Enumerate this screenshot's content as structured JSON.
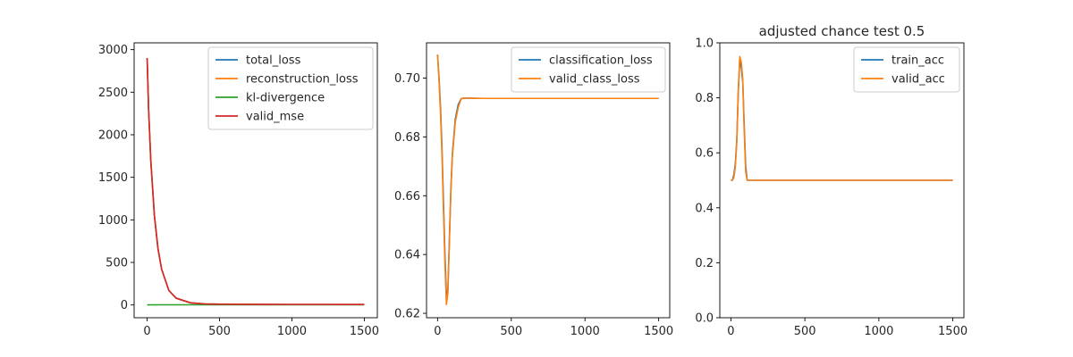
{
  "figure": {
    "background": "#ffffff"
  },
  "chart_data": [
    {
      "type": "line",
      "title": "",
      "xlabel": "",
      "ylabel": "",
      "xlim": [
        -90,
        1590
      ],
      "ylim": [
        -150,
        3080
      ],
      "xticks": [
        0,
        500,
        1000,
        1500
      ],
      "yticks": [
        0,
        500,
        1000,
        1500,
        2000,
        2500,
        3000
      ],
      "grid": false,
      "legend_position": "top-right",
      "series": [
        {
          "name": "total_loss",
          "color": "#1f77b4",
          "x": [
            0,
            10,
            25,
            50,
            75,
            100,
            150,
            200,
            300,
            400,
            500,
            750,
            1000,
            1250,
            1500
          ],
          "y": [
            2900,
            2300,
            1700,
            1050,
            660,
            420,
            170,
            80,
            25,
            12,
            9,
            7,
            6,
            6,
            5
          ]
        },
        {
          "name": "reconstruction_loss",
          "color": "#ff7f0e",
          "x": [
            0,
            10,
            25,
            50,
            75,
            100,
            150,
            200,
            300,
            400,
            500,
            750,
            1000,
            1250,
            1500
          ],
          "y": [
            2900,
            2300,
            1700,
            1050,
            660,
            420,
            170,
            80,
            25,
            12,
            9,
            7,
            6,
            6,
            5
          ]
        },
        {
          "name": "kl-divergence",
          "color": "#2ca02c",
          "x": [
            0,
            100,
            200,
            300,
            400,
            500,
            750,
            1000,
            1250,
            1500
          ],
          "y": [
            1,
            2,
            2,
            2,
            2,
            2,
            2,
            2,
            2,
            2
          ]
        },
        {
          "name": "valid_mse",
          "color": "#d62728",
          "x": [
            0,
            10,
            25,
            50,
            75,
            100,
            150,
            200,
            300,
            400,
            500,
            750,
            1000,
            1250,
            1500
          ],
          "y": [
            2900,
            2300,
            1700,
            1050,
            660,
            420,
            170,
            80,
            25,
            12,
            9,
            7,
            6,
            6,
            5
          ]
        }
      ]
    },
    {
      "type": "line",
      "title": "",
      "xlabel": "",
      "ylabel": "",
      "xlim": [
        -75,
        1575
      ],
      "ylim": [
        0.6185,
        0.712
      ],
      "xticks": [
        0,
        500,
        1000,
        1500
      ],
      "yticks": [
        0.62,
        0.64,
        0.66,
        0.68,
        0.7
      ],
      "grid": false,
      "legend_position": "top-right",
      "series": [
        {
          "name": "classification_loss",
          "color": "#1f77b4",
          "x": [
            0,
            10,
            20,
            30,
            40,
            50,
            60,
            70,
            80,
            90,
            100,
            120,
            140,
            160,
            180,
            200,
            300,
            500,
            1000,
            1500
          ],
          "y": [
            0.708,
            0.7,
            0.69,
            0.676,
            0.658,
            0.64,
            0.626,
            0.628,
            0.645,
            0.662,
            0.674,
            0.686,
            0.691,
            0.693,
            0.6932,
            0.6932,
            0.6931,
            0.6931,
            0.6931,
            0.6931
          ]
        },
        {
          "name": "valid_class_loss",
          "color": "#ff7f0e",
          "x": [
            0,
            10,
            20,
            30,
            40,
            50,
            60,
            70,
            80,
            90,
            100,
            120,
            140,
            160,
            180,
            200,
            300,
            500,
            1000,
            1500
          ],
          "y": [
            0.708,
            0.699,
            0.688,
            0.674,
            0.655,
            0.637,
            0.623,
            0.627,
            0.644,
            0.661,
            0.673,
            0.685,
            0.69,
            0.693,
            0.6932,
            0.6932,
            0.6931,
            0.6931,
            0.6931,
            0.6931
          ]
        }
      ]
    },
    {
      "type": "line",
      "title": "adjusted chance test 0.5",
      "xlabel": "",
      "ylabel": "",
      "xlim": [
        -75,
        1575
      ],
      "ylim": [
        0.0,
        1.0
      ],
      "xticks": [
        0,
        500,
        1000,
        1500
      ],
      "yticks": [
        0.0,
        0.2,
        0.4,
        0.6,
        0.8,
        1.0
      ],
      "grid": false,
      "legend_position": "top-right",
      "series": [
        {
          "name": "train_acc",
          "color": "#1f77b4",
          "x": [
            0,
            10,
            20,
            30,
            40,
            50,
            60,
            70,
            80,
            90,
            100,
            110,
            120,
            1500
          ],
          "y": [
            0.5,
            0.5,
            0.52,
            0.56,
            0.65,
            0.82,
            0.94,
            0.91,
            0.86,
            0.7,
            0.55,
            0.5,
            0.5,
            0.5
          ]
        },
        {
          "name": "valid_acc",
          "color": "#ff7f0e",
          "x": [
            0,
            10,
            20,
            30,
            40,
            50,
            60,
            70,
            80,
            90,
            100,
            110,
            120,
            1500
          ],
          "y": [
            0.5,
            0.5,
            0.51,
            0.55,
            0.64,
            0.83,
            0.95,
            0.93,
            0.87,
            0.68,
            0.53,
            0.5,
            0.5,
            0.5
          ]
        }
      ]
    }
  ]
}
